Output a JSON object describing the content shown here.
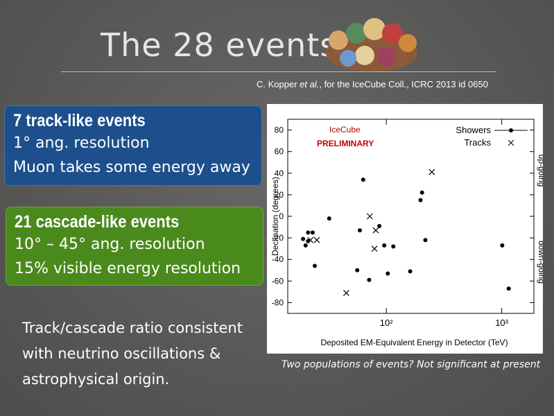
{
  "slide": {
    "title": "The 28 events:",
    "citation": [
      "C. Kopper ",
      "et al.",
      ", for the IceCube Coll., ICRC 2013 id 0650"
    ],
    "track_box": {
      "heading": "7 track-like events",
      "lines": [
        "1° ang. resolution",
        "Muon takes some energy away"
      ]
    },
    "cascade_box": {
      "heading": "21 cascade-like events",
      "lines": [
        "10° – 45° ang. resolution",
        "15% visible energy resolution"
      ]
    },
    "body": [
      "Track/cascade ratio consistent",
      "with neutrino oscillations &",
      "astrophysical origin."
    ],
    "caption": "Two populations of events? Not significant at present"
  },
  "chart_data": {
    "type": "scatter",
    "x_label": "Deposited EM-Equivalent Energy in Detector (TeV)",
    "y_label": "Declination (degrees)",
    "annotations": [
      "IceCube",
      "PRELIMINARY",
      "up-going",
      "down-going"
    ],
    "log_x": true,
    "xlim": [
      14,
      1900
    ],
    "xticks": [
      {
        "value": 100,
        "label": "10²"
      },
      {
        "value": 1000,
        "label": "10³"
      }
    ],
    "ylim": [
      -90,
      90
    ],
    "yticks": [
      -80,
      -60,
      -40,
      -20,
      0,
      20,
      40,
      60,
      80
    ],
    "legend": "upper right",
    "series": [
      {
        "name": "Showers",
        "color": "#000000",
        "marker": "dot",
        "x": [
          63,
          204,
          198,
          218,
          32,
          59,
          87,
          23,
          21,
          19,
          20,
          21,
          24,
          96,
          115,
          56,
          71,
          103,
          161,
          1010,
          1150
        ],
        "values": [
          34,
          22,
          15,
          -22,
          -2,
          -13,
          -9,
          -15,
          -15,
          -21,
          -27,
          -23,
          -46,
          -27,
          -28,
          -50,
          -59,
          -53,
          -51,
          -27,
          -67
        ]
      },
      {
        "name": "Tracks",
        "color": "#000000",
        "marker": "cross",
        "x": [
          248,
          72,
          81,
          79,
          45,
          22,
          25
        ],
        "values": [
          41,
          0,
          -13,
          -30,
          -71,
          -22,
          -22
        ]
      }
    ]
  }
}
